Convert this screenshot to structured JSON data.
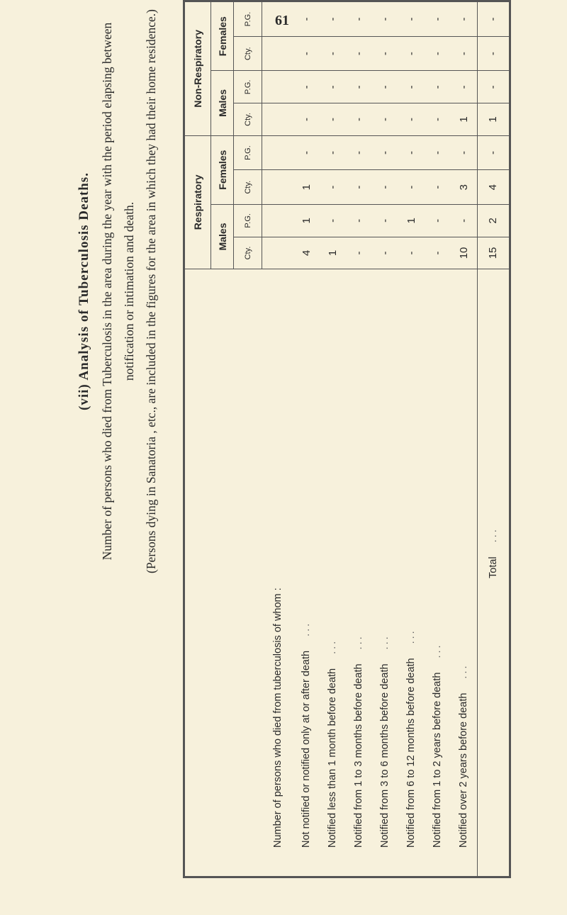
{
  "page_number": "61",
  "title": "(vii) Analysis of Tuberculosis Deaths.",
  "subtitle_lines": [
    "Number of persons who died from Tuberculosis in the area during the year with the period elapsing between",
    "notification or intimation and death."
  ],
  "note": "(Persons dying in Sanatoria , etc., are included in the figures for the area in which they had their home residence.)",
  "table": {
    "groups": [
      "Respiratory",
      "Non-Respiratory"
    ],
    "sexes": [
      "Males",
      "Females",
      "Males",
      "Females"
    ],
    "subcols": [
      "Cty.",
      "P.G.",
      "Cty.",
      "P.G.",
      "Cty.",
      "P.G.",
      "Cty.",
      "P.G."
    ],
    "heading_row": "Number of persons who died from tuberculosis of whom :",
    "rows": [
      {
        "label": "Not notified or notified only at or after death",
        "values": [
          "4",
          "1",
          "1",
          "-",
          "-",
          "-",
          "-",
          "-"
        ]
      },
      {
        "label": "Notified less than 1 month before death",
        "values": [
          "1",
          "-",
          "-",
          "-",
          "-",
          "-",
          "-",
          "-"
        ]
      },
      {
        "label": "Notified from 1 to 3 months before death",
        "values": [
          "-",
          "-",
          "-",
          "-",
          "-",
          "-",
          "-",
          "-"
        ]
      },
      {
        "label": "Notified from 3 to 6 months before death",
        "values": [
          "-",
          "-",
          "-",
          "-",
          "-",
          "-",
          "-",
          "-"
        ]
      },
      {
        "label": "Notified from 6 to 12 months before death",
        "values": [
          "-",
          "1",
          "-",
          "-",
          "-",
          "-",
          "-",
          "-"
        ]
      },
      {
        "label": "Notified from 1 to 2 years before death",
        "values": [
          "-",
          "-",
          "-",
          "-",
          "-",
          "-",
          "-",
          "-"
        ]
      },
      {
        "label": "Notified over 2 years before death",
        "values": [
          "10",
          "-",
          "3",
          "-",
          "1",
          "-",
          "-",
          "-"
        ]
      }
    ],
    "total": {
      "label": "Total",
      "values": [
        "15",
        "2",
        "4",
        "-",
        "1",
        "-",
        "-",
        "-"
      ]
    },
    "dots": "..."
  }
}
